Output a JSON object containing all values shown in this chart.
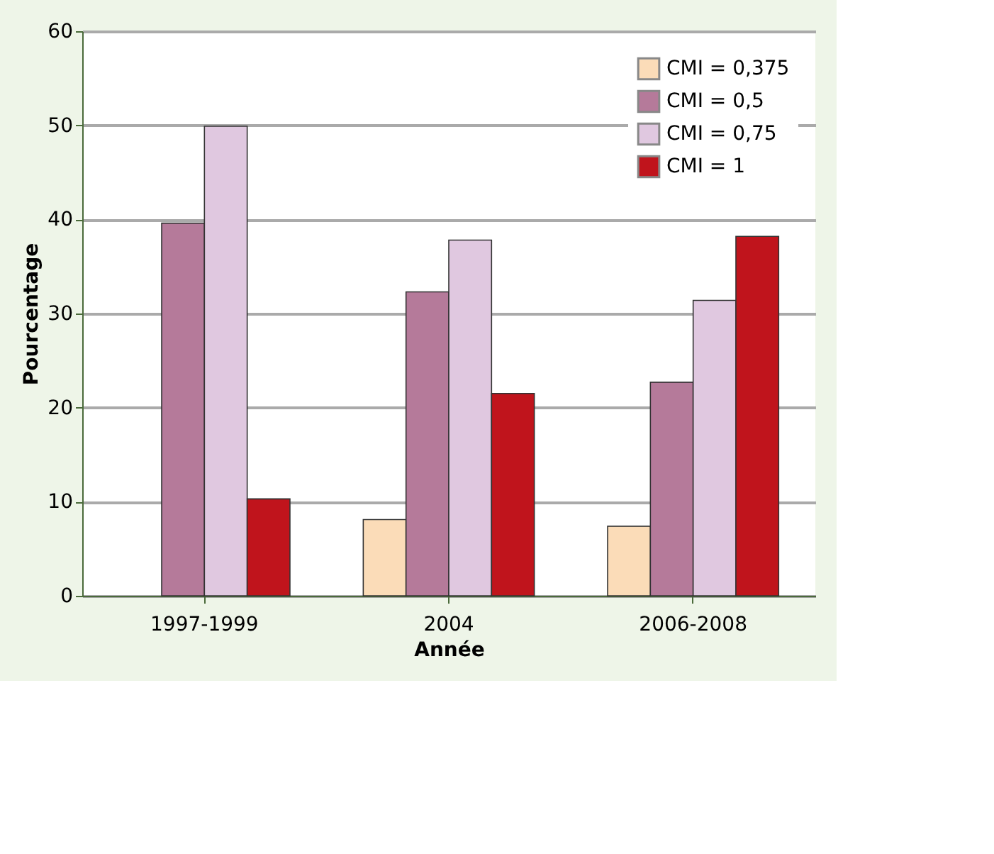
{
  "chart_data": {
    "type": "bar",
    "xlabel": "Année",
    "ylabel": "Pourcentage",
    "categories": [
      "1997-1999",
      "2004",
      "2006-2008"
    ],
    "series": [
      {
        "name": "CMI = 0,375",
        "color": "#fbdcb8",
        "values": [
          null,
          8.1,
          7.4
        ]
      },
      {
        "name": "CMI = 0,5",
        "color": "#b57a9a",
        "values": [
          39.6,
          32.3,
          22.7
        ]
      },
      {
        "name": "CMI = 0,75",
        "color": "#e0c8e0",
        "values": [
          49.9,
          37.8,
          31.4
        ]
      },
      {
        "name": "CMI = 1",
        "color": "#c0141c",
        "values": [
          10.3,
          21.5,
          38.2
        ]
      }
    ],
    "ylim": [
      0,
      60
    ],
    "yticks": [
      0,
      10,
      20,
      30,
      40,
      50,
      60
    ],
    "grid": "y",
    "legend": "top right"
  }
}
